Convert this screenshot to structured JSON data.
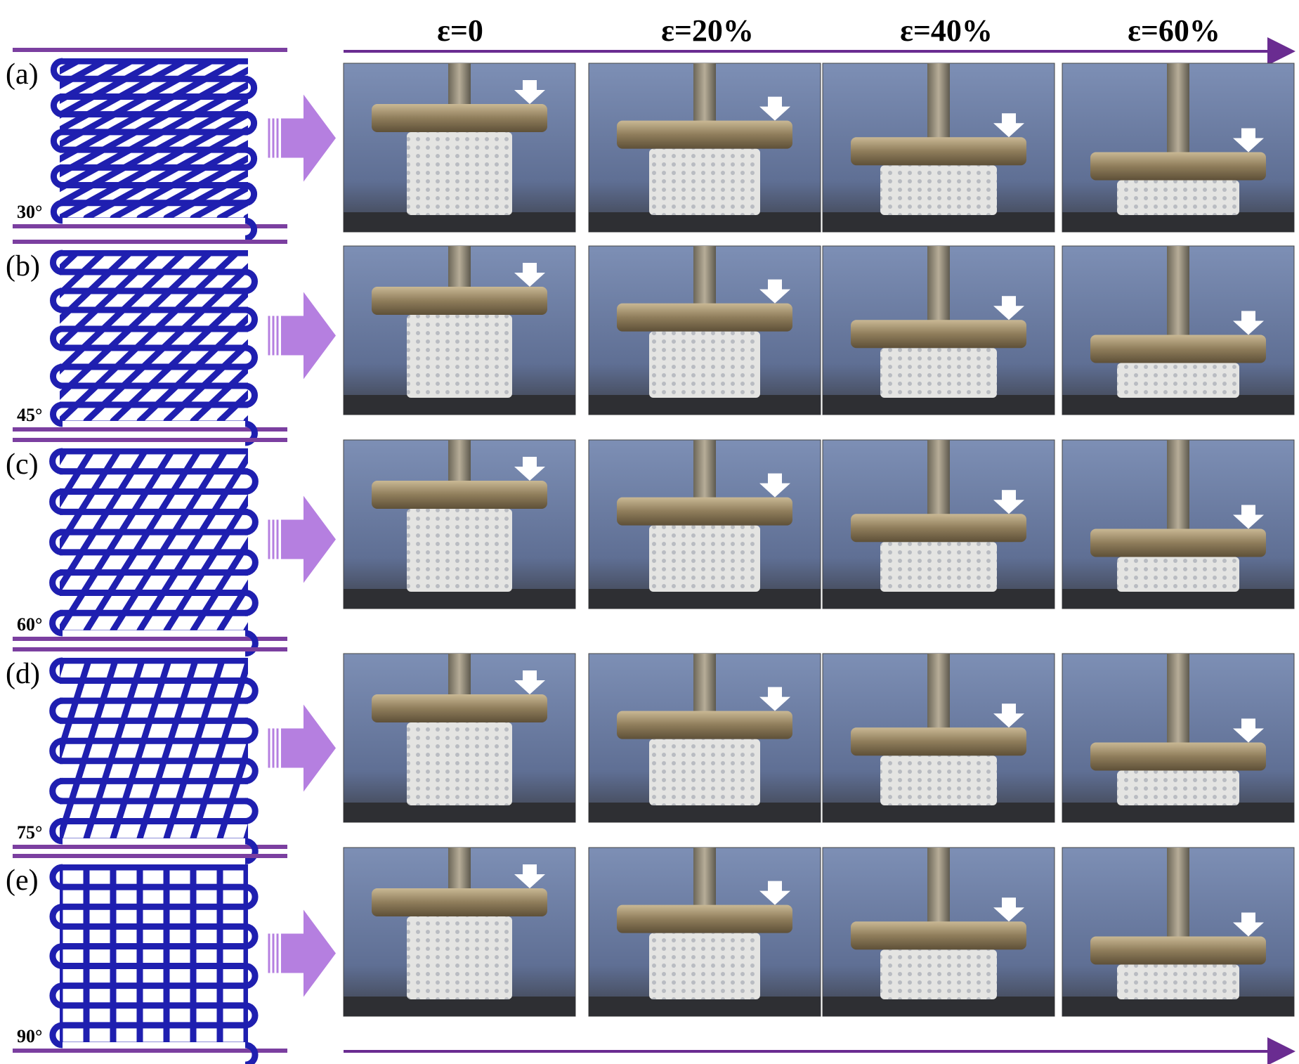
{
  "header": {
    "strains": [
      "ε=0",
      "ε=20%",
      "ε=40%",
      "ε=60%"
    ]
  },
  "rows": [
    {
      "label": "(a)",
      "angle": "30°"
    },
    {
      "label": "(b)",
      "angle": "45°"
    },
    {
      "label": "(c)",
      "angle": "60°"
    },
    {
      "label": "(d)",
      "angle": "75°"
    },
    {
      "label": "(e)",
      "angle": "90°"
    }
  ]
}
